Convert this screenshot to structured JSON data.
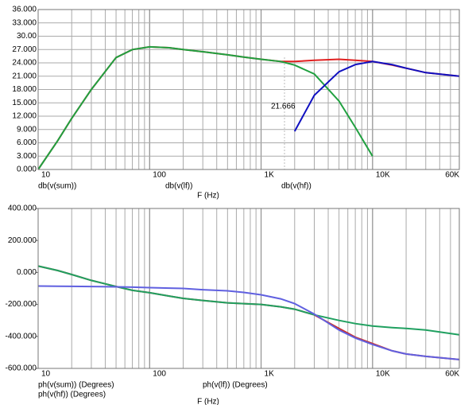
{
  "chart_data": [
    {
      "type": "line",
      "x_label": "F (Hz)",
      "log_x": true,
      "grid": [
        "x",
        "y"
      ],
      "x": [
        10,
        15,
        20,
        30,
        50,
        70,
        100,
        150,
        200,
        300,
        500,
        700,
        1000,
        1500,
        2000,
        3000,
        5000,
        7000,
        10000,
        15000,
        20000,
        30000,
        60000
      ],
      "xlim": [
        10,
        60000
      ],
      "xticks": [
        10,
        100,
        {
          "value": 1000,
          "label": "1K"
        },
        {
          "value": 10000,
          "label": "10K"
        },
        {
          "value": 60000,
          "label": "60K"
        }
      ],
      "ylim": [
        0,
        36
      ],
      "yticks": [
        {
          "value": 0,
          "label": "0.000"
        },
        {
          "value": 3,
          "label": "3.000"
        },
        {
          "value": 6,
          "label": "6.000"
        },
        {
          "value": 9,
          "label": "9.000"
        },
        {
          "value": 12,
          "label": "12.000"
        },
        {
          "value": 15,
          "label": "15.000"
        },
        {
          "value": 18,
          "label": "18.000"
        },
        {
          "value": 21,
          "label": "21.000"
        },
        {
          "value": 24,
          "label": "24.000"
        },
        {
          "value": 27,
          "label": "27.000"
        },
        {
          "value": 30,
          "label": "30.00"
        },
        {
          "value": 33,
          "label": "33.000"
        },
        {
          "value": 36,
          "label": "36.000"
        }
      ],
      "series": [
        {
          "name": "db(v(sum))",
          "color": "#e02020",
          "values": [
            0,
            6.5,
            11.5,
            18,
            25.2,
            27,
            27.6,
            27.4,
            27,
            26.5,
            25.8,
            25.3,
            24.8,
            24.3,
            24.3,
            24.6,
            24.8,
            24.6,
            24.3,
            23.5,
            22.8,
            21.8,
            21
          ]
        },
        {
          "name": "db(v(lf))",
          "color": "#20a040",
          "values": [
            0,
            6.5,
            11.5,
            18,
            25.2,
            27,
            27.6,
            27.4,
            27,
            26.5,
            25.8,
            25.3,
            24.8,
            24.3,
            23.5,
            21.5,
            15.4,
            9.5,
            3,
            null,
            null,
            null,
            null
          ]
        },
        {
          "name": "db(v(hf))",
          "color": "#1010c0",
          "values": [
            null,
            null,
            null,
            null,
            null,
            null,
            null,
            null,
            null,
            null,
            null,
            null,
            null,
            null,
            8.6,
            16.7,
            22,
            23.6,
            24.3,
            23.6,
            22.8,
            21.8,
            21
          ]
        }
      ],
      "annotations": [
        {
          "text": "21.666"
        }
      ]
    },
    {
      "type": "line",
      "x_label": "F (Hz)",
      "log_x": true,
      "grid": [
        "x"
      ],
      "x": [
        10,
        15,
        20,
        30,
        50,
        70,
        100,
        150,
        200,
        300,
        500,
        700,
        1000,
        1500,
        2000,
        3000,
        5000,
        7000,
        10000,
        15000,
        20000,
        30000,
        60000
      ],
      "xlim": [
        10,
        60000
      ],
      "xticks": [
        10,
        100,
        {
          "value": 1000,
          "label": "1K"
        },
        {
          "value": 10000,
          "label": "10K"
        },
        {
          "value": 60000,
          "label": "60K"
        }
      ],
      "ylim": [
        -600,
        400
      ],
      "yticks": [
        {
          "value": -600,
          "label": "-600.000"
        },
        {
          "value": -400,
          "label": "-400.000"
        },
        {
          "value": -200,
          "label": "-200.000"
        },
        {
          "value": 0,
          "label": "0.000"
        },
        {
          "value": 200,
          "label": "200.000"
        },
        {
          "value": 400,
          "label": "400.000"
        }
      ],
      "series": [
        {
          "name": "ph(v(sum)) (Degrees)",
          "color": "#c83030",
          "values": [
            40,
            12,
            -13,
            -50,
            -88,
            -112,
            -127,
            -148,
            -162,
            -175,
            -190,
            -195,
            -200,
            -215,
            -230,
            -265,
            -350,
            -405,
            -445,
            -490,
            -510,
            -525,
            -545
          ]
        },
        {
          "name": "ph(v(lf)) (Degrees)",
          "color": "#20a060",
          "values": [
            40,
            12,
            -13,
            -50,
            -88,
            -112,
            -127,
            -148,
            -162,
            -175,
            -190,
            -195,
            -200,
            -215,
            -230,
            -265,
            -300,
            -320,
            -335,
            -345,
            -350,
            -360,
            -390
          ]
        },
        {
          "name": "ph(v(hf)) (Degrees)",
          "color": "#6060e0",
          "values": [
            -85,
            -86,
            -87,
            -88,
            -90,
            -92,
            -95,
            -98,
            -100,
            -108,
            -115,
            -125,
            -140,
            -165,
            -195,
            -260,
            -360,
            -410,
            -450,
            -490,
            -510,
            -525,
            -545
          ]
        }
      ]
    }
  ]
}
